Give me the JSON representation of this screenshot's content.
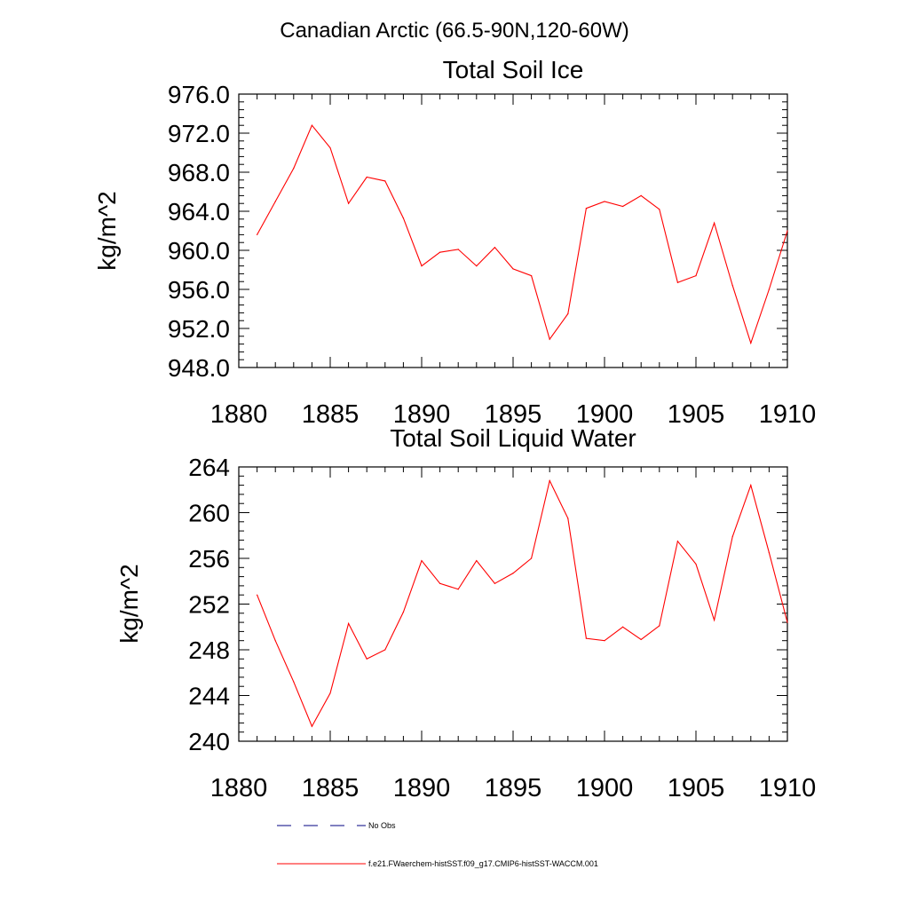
{
  "main_title": "Canadian Arctic (66.5-90N,120-60W)",
  "line_color": "#ff0000",
  "obs_color": "#000080",
  "legend": {
    "obs_label": "No Obs",
    "model_label": "f.e21.FWaerchem-histSST.f09_g17.CMIP6-histSST-WACCM.001"
  },
  "chart_data": [
    {
      "type": "line",
      "title": "Total Soil Ice",
      "ylabel": "kg/m^2",
      "xlim": [
        1880,
        1910
      ],
      "ylim": [
        948,
        976
      ],
      "xticks": [
        1880,
        1885,
        1890,
        1895,
        1900,
        1905,
        1910
      ],
      "xtick_labels": [
        "1880",
        "1885",
        "1890",
        "1895",
        "1900",
        "1905",
        "1910"
      ],
      "yticks": [
        948,
        952,
        956,
        960,
        964,
        968,
        972,
        976
      ],
      "ytick_labels": [
        "948.0",
        "952.0",
        "956.0",
        "960.0",
        "964.0",
        "968.0",
        "972.0",
        "976.0"
      ],
      "series": [
        {
          "name": "f.e21.FWaerchem-histSST.f09_g17.CMIP6-histSST-WACCM.001",
          "x": [
            1881,
            1882,
            1883,
            1884,
            1885,
            1886,
            1887,
            1888,
            1889,
            1890,
            1891,
            1892,
            1893,
            1894,
            1895,
            1896,
            1897,
            1898,
            1899,
            1900,
            1901,
            1902,
            1903,
            1904,
            1905,
            1906,
            1907,
            1908,
            1909,
            1910
          ],
          "y": [
            961.6,
            965.0,
            968.4,
            972.8,
            970.5,
            964.8,
            967.5,
            967.1,
            963.3,
            958.4,
            959.8,
            960.1,
            958.4,
            960.3,
            958.1,
            957.4,
            950.9,
            953.5,
            964.3,
            965.0,
            964.5,
            965.6,
            964.2,
            956.7,
            957.4,
            962.8,
            956.4,
            950.5,
            956.0,
            962.0
          ]
        }
      ]
    },
    {
      "type": "line",
      "title": "Total Soil Liquid Water",
      "ylabel": "kg/m^2",
      "xlim": [
        1880,
        1910
      ],
      "ylim": [
        240,
        264
      ],
      "xticks": [
        1880,
        1885,
        1890,
        1895,
        1900,
        1905,
        1910
      ],
      "xtick_labels": [
        "1880",
        "1885",
        "1890",
        "1895",
        "1900",
        "1905",
        "1910"
      ],
      "yticks": [
        240,
        244,
        248,
        252,
        256,
        260,
        264
      ],
      "ytick_labels": [
        "240",
        "244",
        "248",
        "252",
        "256",
        "260",
        "264"
      ],
      "series": [
        {
          "name": "f.e21.FWaerchem-histSST.f09_g17.CMIP6-histSST-WACCM.001",
          "x": [
            1881,
            1882,
            1883,
            1884,
            1885,
            1886,
            1887,
            1888,
            1889,
            1890,
            1891,
            1892,
            1893,
            1894,
            1895,
            1896,
            1897,
            1898,
            1899,
            1900,
            1901,
            1902,
            1903,
            1904,
            1905,
            1906,
            1907,
            1908,
            1909,
            1910
          ],
          "y": [
            252.8,
            248.8,
            245.2,
            241.3,
            244.2,
            250.3,
            247.2,
            248.0,
            251.3,
            255.8,
            253.8,
            253.3,
            255.8,
            253.8,
            254.7,
            256.0,
            262.8,
            259.5,
            249.0,
            248.8,
            250.0,
            248.9,
            250.1,
            257.5,
            255.5,
            250.6,
            257.9,
            262.4,
            256.5,
            250.4
          ]
        }
      ]
    }
  ]
}
